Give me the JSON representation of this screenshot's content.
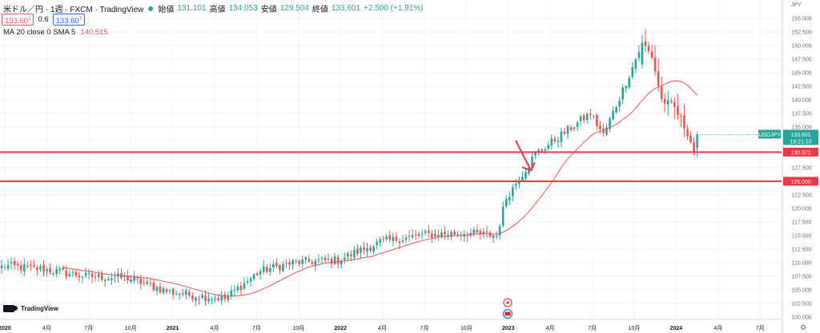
{
  "header": {
    "symbol": "米ドル／円 · 1週 · FXCM · TradingView",
    "open_label": "始値",
    "open": "131.101",
    "high_label": "高値",
    "high": "134.053",
    "low_label": "安値",
    "low": "129.504",
    "close_label": "終値",
    "close": "133.601",
    "change": "+2.500 (+1.91%)",
    "sell": "133.60",
    "sell_sup": "1",
    "spread": "0.6",
    "buy": "133.60",
    "buy_sup": "7"
  },
  "indicator": {
    "label": "MA 20 close 0 SMA 5",
    "value": "140.515"
  },
  "logo": {
    "text": "TradingView"
  },
  "colors": {
    "up": "#26a69a",
    "down": "#ef5350",
    "ma": "#ef5350",
    "grid": "#f0f3fa",
    "hline": "#f23645",
    "price_tag": "#26a69a"
  },
  "chart_data": {
    "type": "candlestick",
    "currency": "JPY",
    "yticks": [
      "155.000",
      "152.500",
      "150.000",
      "147.500",
      "145.000",
      "142.500",
      "140.000",
      "137.500",
      "135.000",
      "132.500",
      "130.000",
      "127.500",
      "125.000",
      "122.500",
      "120.000",
      "117.500",
      "115.000",
      "112.500",
      "110.000",
      "107.500",
      "105.000",
      "102.500",
      "100.000"
    ],
    "xticks": [
      "2020",
      "4月",
      "7月",
      "10月",
      "2021",
      "4月",
      "7月",
      "10月",
      "2022",
      "4月",
      "7月",
      "10月",
      "2023",
      "4月",
      "7月",
      "10月",
      "2024",
      "4月",
      "7月"
    ],
    "ylim": [
      100,
      155
    ],
    "last_price": {
      "label": "USDJPY",
      "value": "133.601",
      "countdown": "19:21:10"
    },
    "hlines": [
      {
        "value": 130.372,
        "label": "130.372"
      },
      {
        "value": 125.0,
        "label": "125.000"
      }
    ],
    "arrow_annotation": {
      "from": [
        132.5
      ],
      "to": [
        127.0
      ],
      "direction": "down"
    },
    "close_anchors": [
      [
        0,
        109.5
      ],
      [
        13,
        108.8
      ],
      [
        26,
        107.5
      ],
      [
        39,
        107.2
      ],
      [
        52,
        104.6
      ],
      [
        65,
        103.6
      ],
      [
        69,
        103.4
      ],
      [
        80,
        108.5
      ],
      [
        91,
        110.1
      ],
      [
        104,
        110.5
      ],
      [
        117,
        113.8
      ],
      [
        130,
        115.1
      ],
      [
        143,
        115.5
      ],
      [
        153,
        115.0
      ],
      [
        156,
        122.0
      ],
      [
        165,
        130.0
      ],
      [
        182,
        137.5
      ],
      [
        186,
        133.5
      ],
      [
        195,
        146.0
      ],
      [
        198,
        150.5
      ],
      [
        201,
        148.0
      ],
      [
        204,
        140.0
      ],
      [
        208,
        138.5
      ],
      [
        212,
        134.0
      ],
      [
        214,
        130.6
      ],
      [
        215,
        133.6
      ]
    ],
    "ma_period": 20,
    "ma_last": 140.515
  }
}
